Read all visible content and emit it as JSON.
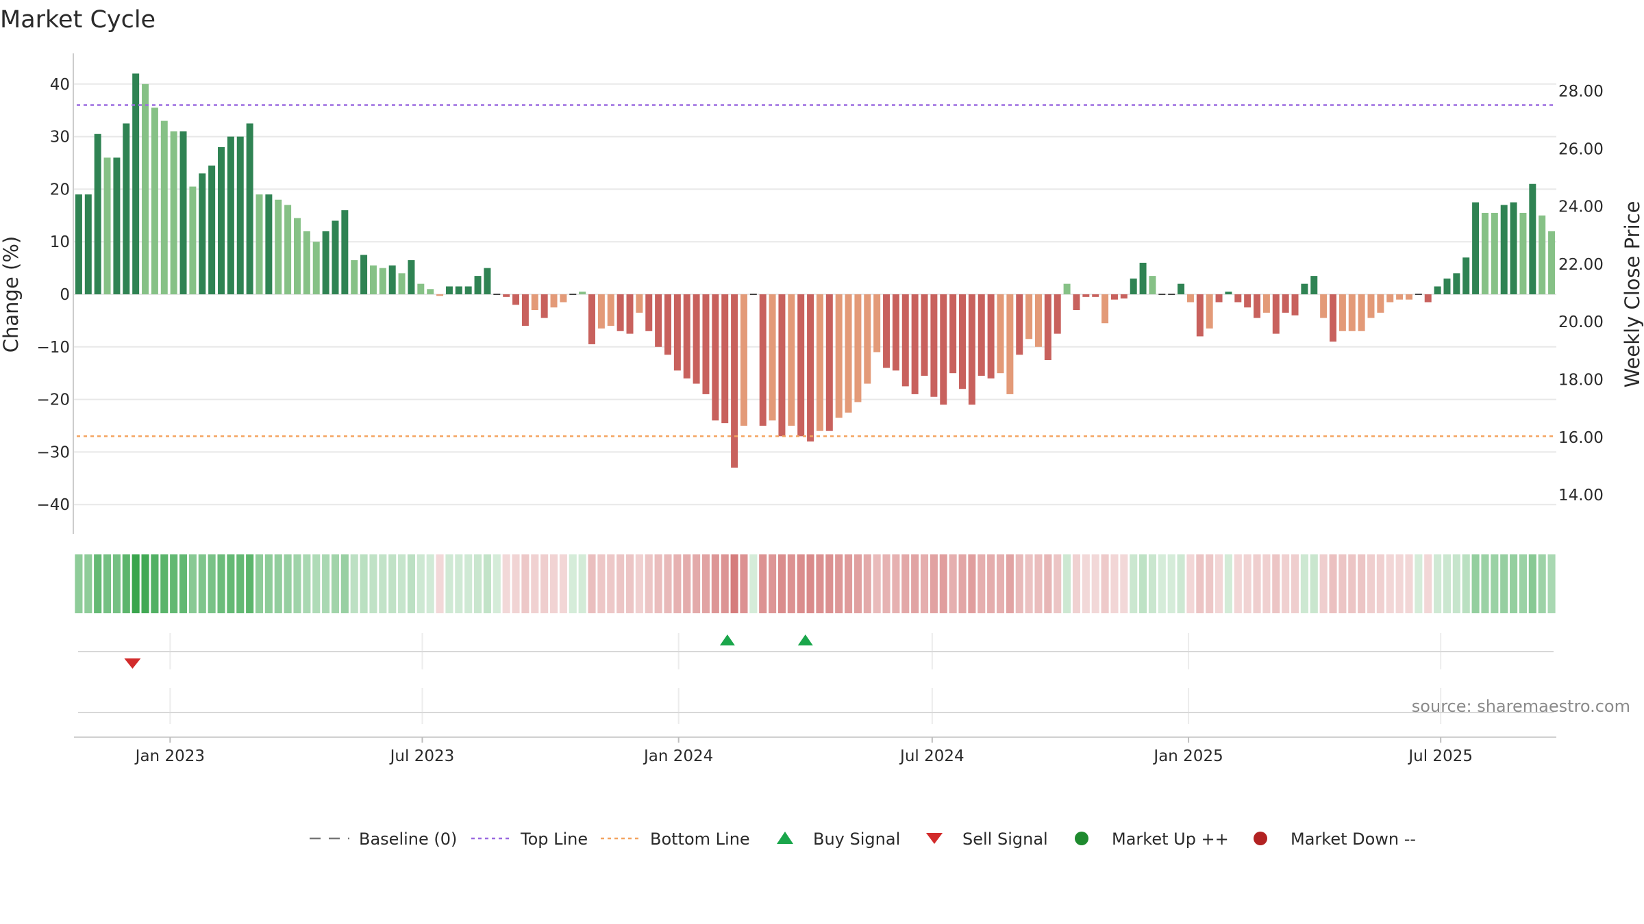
{
  "title": "Market Cycle",
  "source": "source: sharemaestro.com",
  "colors": {
    "pos_dark": "#2f8353",
    "pos_light": "#86c186",
    "neg_dark": "#c8615d",
    "neg_light": "#e39a78",
    "top_line": "#9b6be0",
    "bottom_line": "#f4a460",
    "buy": "#1aa64b",
    "sell": "#d22b2b",
    "market_up": "#1e8a2e",
    "market_down": "#b22222",
    "baseline": "#777777",
    "grid": "#e8e8e8"
  },
  "legend": [
    {
      "label": "Baseline (0)",
      "kind": "baseline"
    },
    {
      "label": "Top Line",
      "kind": "top_line"
    },
    {
      "label": "Bottom Line",
      "kind": "bottom_line"
    },
    {
      "label": "Buy Signal",
      "kind": "buy"
    },
    {
      "label": "Sell Signal",
      "kind": "sell"
    },
    {
      "label": "Market Up ++",
      "kind": "market_up"
    },
    {
      "label": "Market Down --",
      "kind": "market_down"
    }
  ],
  "chart_data": {
    "type": "bar",
    "title": "Market Cycle",
    "ylabel": "Change (%)",
    "y2label": "Weekly Close Price",
    "ylim": [
      -46,
      46
    ],
    "yticks": [
      40,
      30,
      20,
      10,
      0,
      -10,
      -20,
      -30,
      -40
    ],
    "ytick_labels": [
      "40",
      "30",
      "20",
      "10",
      "0",
      "−10",
      "−20",
      "−30",
      "−40"
    ],
    "y2ticks": [
      "28.00",
      "26.00",
      "24.00",
      "22.00",
      "20.00",
      "18.00",
      "16.00",
      "14.00"
    ],
    "x_range": [
      "2022-10-24",
      "2025-09-22"
    ],
    "xticks": [
      {
        "label": "Jan 2023",
        "date": "2023-01-01"
      },
      {
        "label": "Jul 2023",
        "date": "2023-07-01"
      },
      {
        "label": "Jan 2024",
        "date": "2024-01-01"
      },
      {
        "label": "Jul 2024",
        "date": "2024-07-01"
      },
      {
        "label": "Jan 2025",
        "date": "2025-01-01"
      },
      {
        "label": "Jul 2025",
        "date": "2025-07-01"
      }
    ],
    "top_line": 36,
    "bottom_line": -27,
    "baseline": 0,
    "start_date": "2022-10-24",
    "values": [
      19,
      19,
      30.5,
      26,
      26,
      32.5,
      42,
      40,
      35.5,
      33,
      31,
      31,
      20.5,
      23,
      24.5,
      28,
      30,
      30,
      32.5,
      19,
      19,
      18,
      17,
      14.5,
      12,
      10,
      12,
      14,
      16,
      6.5,
      7.5,
      5.5,
      5,
      5.5,
      4,
      6.5,
      2,
      1,
      -0.3,
      1.5,
      1.5,
      1.5,
      3.5,
      5,
      0,
      -0.5,
      -2,
      -6,
      -3,
      -4.5,
      -2.5,
      -1.5,
      0,
      0.5,
      -9.5,
      -6.5,
      -6,
      -7,
      -7.5,
      -3.5,
      -7,
      -10,
      -11.5,
      -14.5,
      -16,
      -17,
      -19,
      -24,
      -24.5,
      -33,
      -25,
      0,
      -25,
      -24,
      -27,
      -25,
      -27,
      -28,
      -26,
      -26,
      -23.5,
      -22.5,
      -20.5,
      -17,
      -11,
      -14,
      -14.5,
      -17.5,
      -19,
      -15.5,
      -19.5,
      -21,
      -15,
      -18,
      -21,
      -15.5,
      -16,
      -15,
      -19,
      -11.5,
      -8.5,
      -10,
      -12.5,
      -7.5,
      2,
      -3,
      -0.5,
      -0.5,
      -5.5,
      -1,
      -0.8,
      3,
      6,
      3.5,
      0,
      0,
      2,
      -1.5,
      -8,
      -6.5,
      -1.5,
      0.5,
      -1.5,
      -2.5,
      -4.5,
      -3.5,
      -7.5,
      -3.5,
      -4,
      2,
      3.5,
      -4.5,
      -9,
      -7,
      -7,
      -7,
      -4.5,
      -3.5,
      -1.5,
      -1,
      -1,
      0,
      -1.5,
      1.5,
      3,
      4,
      7,
      17.5,
      15.5,
      15.5,
      17,
      17.5,
      15.5,
      21,
      15,
      12
    ],
    "shades": [
      0,
      0,
      0,
      1,
      0,
      0,
      0,
      1,
      1,
      1,
      1,
      0,
      1,
      0,
      0,
      0,
      0,
      0,
      0,
      1,
      0,
      1,
      1,
      1,
      1,
      1,
      0,
      0,
      0,
      1,
      0,
      1,
      1,
      0,
      1,
      0,
      1,
      1,
      1,
      0,
      0,
      0,
      0,
      0,
      0,
      0,
      0,
      0,
      1,
      0,
      1,
      1,
      0,
      1,
      0,
      1,
      1,
      0,
      0,
      1,
      0,
      0,
      0,
      0,
      0,
      0,
      0,
      0,
      0,
      0,
      1,
      0,
      0,
      1,
      0,
      1,
      0,
      0,
      1,
      0,
      1,
      1,
      1,
      1,
      1,
      0,
      0,
      0,
      0,
      0,
      0,
      0,
      0,
      0,
      0,
      0,
      0,
      1,
      1,
      0,
      1,
      1,
      0,
      0,
      1,
      0,
      0,
      0,
      1,
      0,
      0,
      0,
      0,
      1,
      0,
      0,
      0,
      1,
      0,
      1,
      0,
      0,
      0,
      0,
      0,
      1,
      0,
      0,
      0,
      0,
      0,
      1,
      0,
      1,
      1,
      1,
      1,
      1,
      1,
      1,
      1,
      1,
      0,
      0,
      0,
      0,
      0,
      0,
      1,
      1,
      0,
      0,
      1,
      0,
      1,
      1
    ],
    "buy_signals": [
      "2024-02-05",
      "2024-04-01"
    ],
    "sell_signals": [
      "2022-12-05"
    ]
  }
}
